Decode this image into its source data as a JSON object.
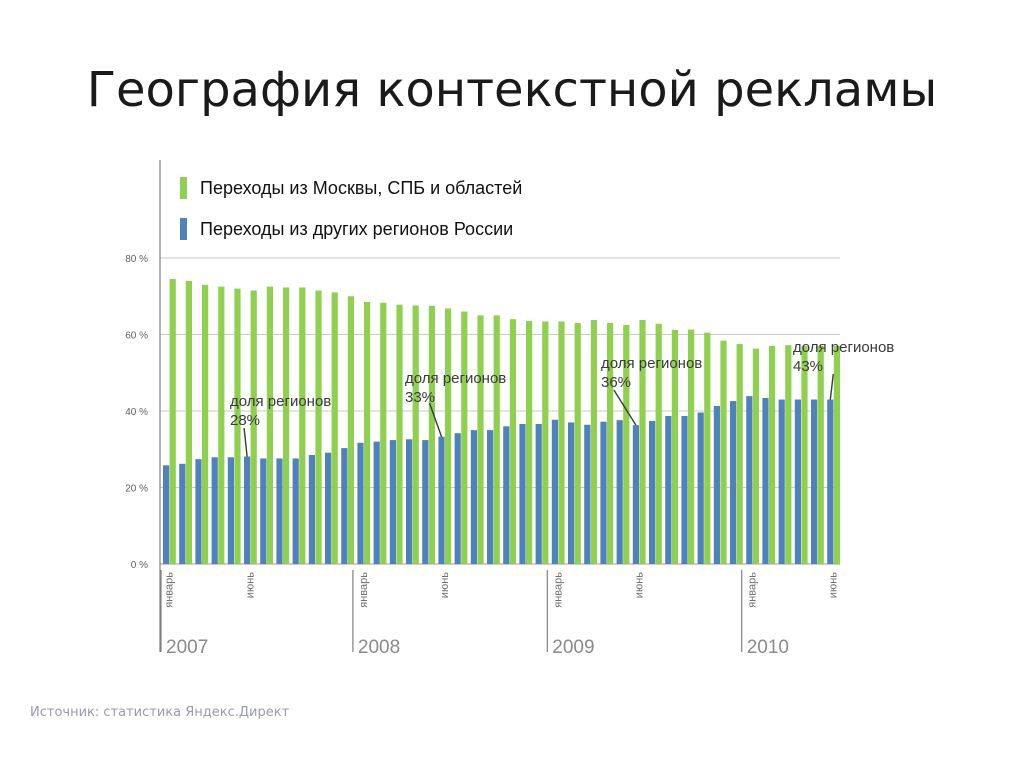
{
  "title": "География контекстной рекламы",
  "source_note": "Источник: статистика Яндекс.Директ",
  "colors": {
    "moscow": "#8fd14f",
    "regions": "#4f81bd",
    "grid": "#c8c8c8",
    "axis": "#808080"
  },
  "chart_data": {
    "type": "bar",
    "title": "",
    "xlabel": "",
    "ylabel": "",
    "ylim": [
      0,
      80
    ],
    "y_ticks": [
      {
        "value": 0,
        "label": "0 %"
      },
      {
        "value": 20,
        "label": "20 %"
      },
      {
        "value": 40,
        "label": "40 %"
      },
      {
        "value": 60,
        "label": "60 %"
      },
      {
        "value": 80,
        "label": "80 %"
      }
    ],
    "grid": true,
    "legend_position": "top-left",
    "x_month_labels": [
      {
        "index": 0,
        "label": "январь"
      },
      {
        "index": 5,
        "label": "июнь"
      },
      {
        "index": 12,
        "label": "январь"
      },
      {
        "index": 17,
        "label": "июнь"
      },
      {
        "index": 24,
        "label": "январь"
      },
      {
        "index": 29,
        "label": "июнь"
      },
      {
        "index": 36,
        "label": "январь"
      },
      {
        "index": 41,
        "label": "июнь"
      }
    ],
    "years": [
      {
        "start_index": 0,
        "label": "2007"
      },
      {
        "start_index": 12,
        "label": "2008"
      },
      {
        "start_index": 24,
        "label": "2009"
      },
      {
        "start_index": 36,
        "label": "2010"
      }
    ],
    "series": [
      {
        "name": "Переходы из Москвы, СПБ и областей",
        "color": "#8fd14f",
        "values": [
          74.5,
          74,
          73,
          72.5,
          72,
          71.5,
          72.5,
          72.3,
          72.3,
          71.5,
          71,
          70,
          68.5,
          68.3,
          67.8,
          67.6,
          67.5,
          66.8,
          66,
          65,
          65,
          64,
          63.5,
          63.4,
          63.4,
          63,
          63.8,
          63,
          62.5,
          63.8,
          62.8,
          61.2,
          61.3,
          60.5,
          58.4,
          57.5,
          56.3,
          57,
          57.2,
          57,
          57,
          57
        ]
      },
      {
        "name": "Переходы из других регионов России",
        "color": "#4f81bd",
        "values": [
          25.8,
          26.2,
          27.4,
          27.9,
          27.9,
          28.1,
          27.6,
          27.6,
          27.6,
          28.5,
          29.1,
          30.3,
          31.7,
          32,
          32.4,
          32.6,
          32.4,
          33.3,
          34.2,
          35,
          35,
          36,
          36.6,
          36.6,
          37.7,
          37,
          36.4,
          37.2,
          37.6,
          36.3,
          37.4,
          38.7,
          38.7,
          39.6,
          41.3,
          42.6,
          43.9,
          43.4,
          43,
          43,
          43,
          43
        ]
      }
    ],
    "annotations": [
      {
        "index": 5,
        "line1": "доля регионов",
        "line2": "28%"
      },
      {
        "index": 17,
        "line1": "доля регионов",
        "line2": "33%"
      },
      {
        "index": 29,
        "line1": "доля регионов",
        "line2": "36%"
      },
      {
        "index": 41,
        "line1": "доля регионов",
        "line2": "43%"
      }
    ]
  }
}
